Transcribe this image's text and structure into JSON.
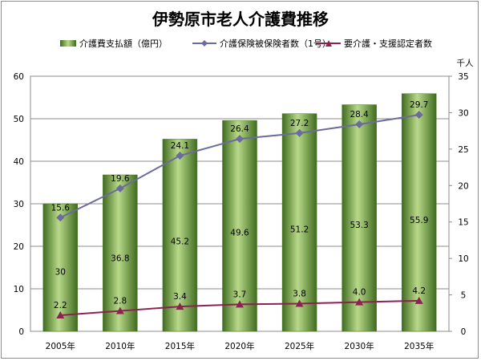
{
  "chart_data": {
    "type": "bar",
    "title": "伊勢原市老人介護費推移",
    "categories": [
      "2005年",
      "2010年",
      "2015年",
      "2020年",
      "2025年",
      "2030年",
      "2035年"
    ],
    "left_axis": {
      "ylim": [
        0,
        60
      ],
      "ticks": [
        "0",
        "10",
        "20",
        "30",
        "40",
        "50",
        "60"
      ]
    },
    "right_axis": {
      "unit": "千人",
      "ylim": [
        0,
        35
      ],
      "ticks": [
        "0",
        "5",
        "10",
        "15",
        "20",
        "25",
        "30",
        "35"
      ]
    },
    "grid": true,
    "legend_position": "top",
    "series": [
      {
        "name": "介護費支払額（億円）",
        "type": "bar",
        "axis": "left",
        "color": "#6a9a3a",
        "values": [
          30,
          36.8,
          45.2,
          49.6,
          51.2,
          53.3,
          55.9
        ],
        "labels": [
          "30",
          "36.8",
          "45.2",
          "49.6",
          "51.2",
          "53.3",
          "55.9"
        ]
      },
      {
        "name": "介護保険被保険者数（1号）",
        "type": "line",
        "axis": "right",
        "color": "#6b6b9e",
        "marker": "diamond",
        "values": [
          15.6,
          19.6,
          24.1,
          26.4,
          27.2,
          28.4,
          29.7
        ],
        "labels": [
          "15.6",
          "19.6",
          "24.1",
          "26.4",
          "27.2",
          "28.4",
          "29.7"
        ]
      },
      {
        "name": "要介護・支援認定者数",
        "type": "line",
        "axis": "right",
        "color": "#8b2252",
        "marker": "triangle",
        "values": [
          2.2,
          2.8,
          3.4,
          3.7,
          3.8,
          4.0,
          4.2
        ],
        "labels": [
          "2.2",
          "2.8",
          "3.4",
          "3.7",
          "3.8",
          "4.0",
          "4.2"
        ]
      }
    ]
  }
}
